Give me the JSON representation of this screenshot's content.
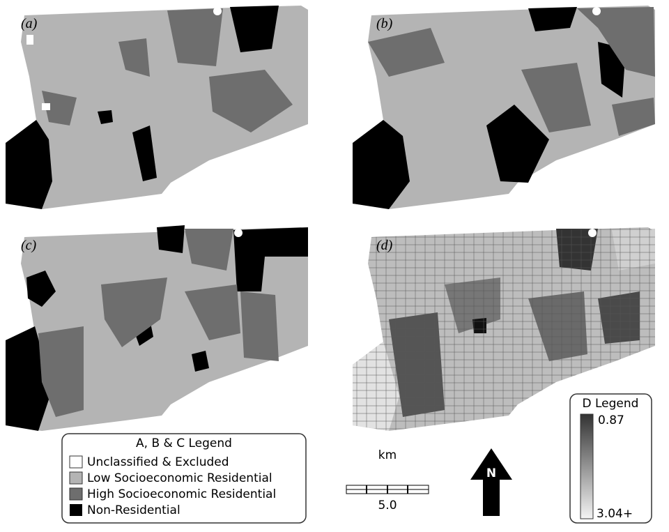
{
  "panels": [
    {
      "label": "(a)"
    },
    {
      "label": "(b)"
    },
    {
      "label": "(c)"
    },
    {
      "label": "(d)"
    }
  ],
  "abc_legend": {
    "title": "A, B & C Legend",
    "items": [
      "Unclassified & Excluded",
      "Low Socioeconomic Residential",
      "High Socioeconomic Residential",
      "Non-Residential"
    ]
  },
  "scale_bar": {
    "unit": "km",
    "length": "5.0"
  },
  "north_arrow": "N",
  "d_legend": {
    "title": "D Legend",
    "top_label": "0.87",
    "bottom_label": "3.04+"
  }
}
